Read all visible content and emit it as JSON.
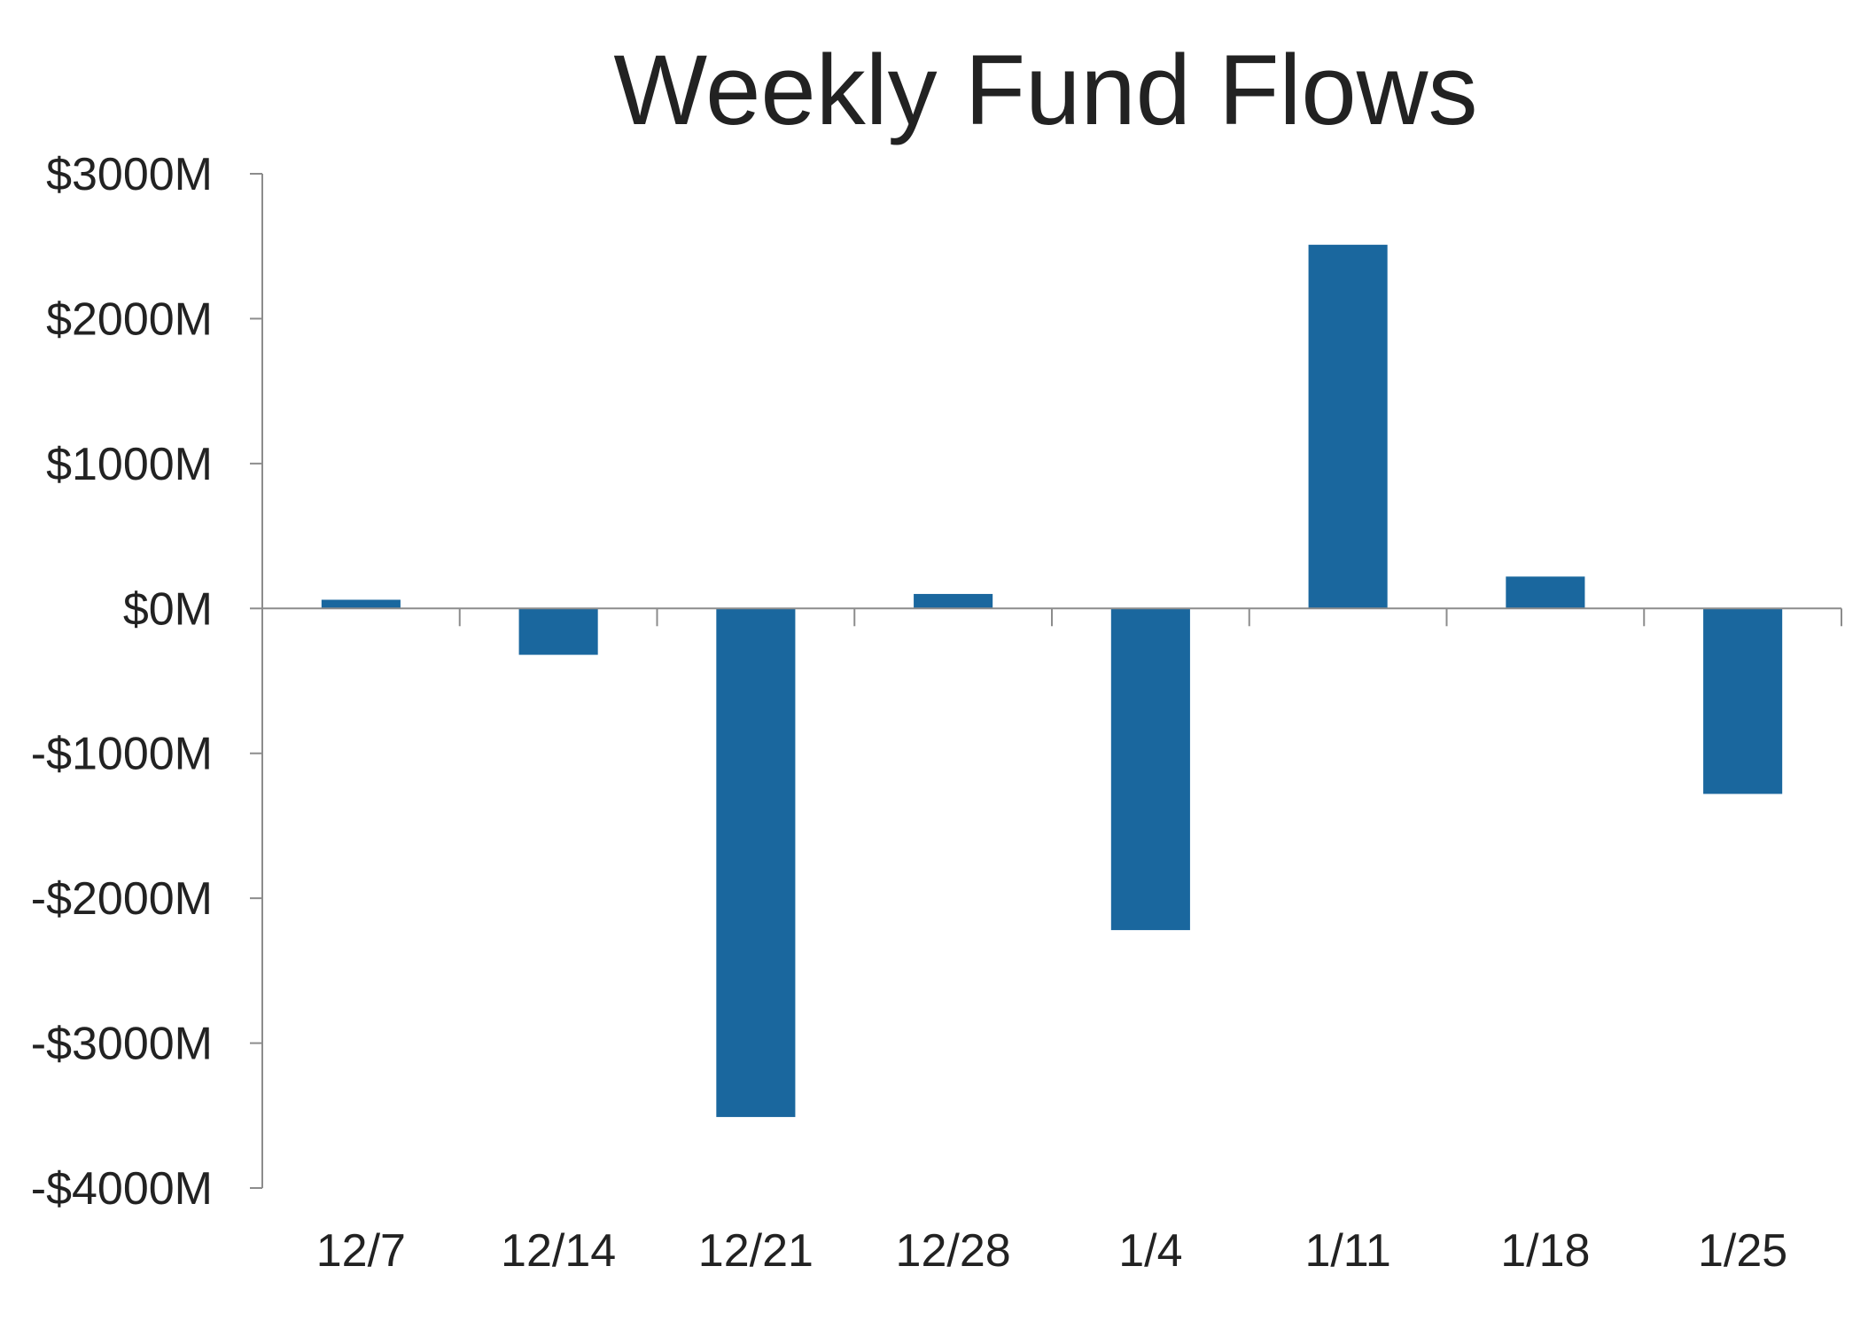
{
  "chart_data": {
    "type": "bar",
    "title": "Weekly Fund Flows",
    "xlabel": "",
    "ylabel": "",
    "categories": [
      "12/7",
      "12/14",
      "12/21",
      "12/28",
      "1/4",
      "1/11",
      "1/18",
      "1/25"
    ],
    "series": [
      {
        "values": [
          60,
          -320,
          -3510,
          100,
          -2220,
          2510,
          220,
          -1280
        ],
        "color": "#1a679e"
      }
    ],
    "ylim": [
      -4000,
      3000
    ],
    "yticks": [
      3000,
      2000,
      1000,
      0,
      -1000,
      -2000,
      -3000,
      -4000
    ],
    "ytick_labels": [
      "$3000M",
      "$2000M",
      "$1000M",
      "$0M",
      "-$1000M",
      "-$2000M",
      "-$3000M",
      "-$4000M"
    ],
    "grid": false,
    "legend": "none",
    "axis_color": "#8c8c8c"
  }
}
